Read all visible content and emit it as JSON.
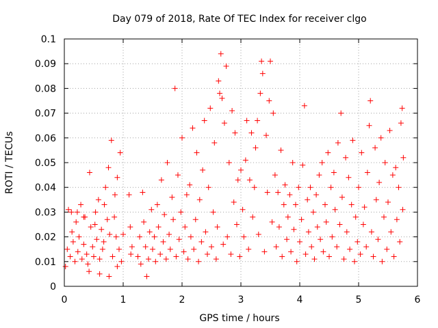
{
  "chart_data": {
    "type": "scatter",
    "title": "Day 079 of 2018, Rate Of TEC Index for receiver clgo",
    "xlabel": "GPS time / hours",
    "ylabel": "ROTI / TECUs",
    "xlim": [
      0,
      6
    ],
    "ylim": [
      0,
      0.1
    ],
    "x_ticks": [
      "0",
      "1",
      "2",
      "3",
      "4",
      "5",
      "6"
    ],
    "y_ticks": [
      "0",
      "0.01",
      "0.02",
      "0.03",
      "0.04",
      "0.05",
      "0.06",
      "0.07",
      "0.08",
      "0.09",
      "0.1"
    ],
    "grid": true,
    "marker": "+",
    "series_color": "#ff0000",
    "series": [
      {
        "name": "ROTI",
        "points": [
          [
            0.02,
            0.008
          ],
          [
            0.05,
            0.015
          ],
          [
            0.07,
            0.031
          ],
          [
            0.1,
            0.012
          ],
          [
            0.13,
            0.022
          ],
          [
            0.15,
            0.018
          ],
          [
            0.18,
            0.01
          ],
          [
            0.2,
            0.026
          ],
          [
            0.23,
            0.014
          ],
          [
            0.25,
            0.02
          ],
          [
            0.28,
            0.033
          ],
          [
            0.3,
            0.011
          ],
          [
            0.33,
            0.017
          ],
          [
            0.35,
            0.028
          ],
          [
            0.38,
            0.013
          ],
          [
            0.4,
            0.009
          ],
          [
            0.43,
            0.046
          ],
          [
            0.45,
            0.024
          ],
          [
            0.48,
            0.016
          ],
          [
            0.5,
            0.012
          ],
          [
            0.53,
            0.03
          ],
          [
            0.55,
            0.019
          ],
          [
            0.58,
            0.035
          ],
          [
            0.6,
            0.011
          ],
          [
            0.63,
            0.023
          ],
          [
            0.65,
            0.015
          ],
          [
            0.68,
            0.033
          ],
          [
            0.7,
            0.04
          ],
          [
            0.73,
            0.027
          ],
          [
            0.75,
            0.048
          ],
          [
            0.77,
            0.021
          ],
          [
            0.8,
            0.059
          ],
          [
            0.82,
            0.012
          ],
          [
            0.85,
            0.028
          ],
          [
            0.88,
            0.02
          ],
          [
            0.9,
            0.044
          ],
          [
            0.93,
            0.015
          ],
          [
            0.95,
            0.054
          ],
          [
            0.97,
            0.01
          ],
          [
            1.0,
            0.021
          ],
          [
            0.12,
            0.03
          ],
          [
            0.22,
            0.03
          ],
          [
            0.33,
            0.028
          ],
          [
            0.52,
            0.025
          ],
          [
            0.67,
            0.018
          ],
          [
            0.86,
            0.037
          ],
          [
            0.42,
            0.006
          ],
          [
            0.6,
            0.005
          ],
          [
            0.76,
            0.004
          ],
          [
            0.9,
            0.008
          ],
          [
            1.1,
            0.037
          ],
          [
            1.12,
            0.024
          ],
          [
            1.13,
            0.013
          ],
          [
            1.15,
            0.016
          ],
          [
            1.25,
            0.012
          ],
          [
            1.28,
            0.02
          ],
          [
            1.3,
            0.009
          ],
          [
            1.33,
            0.038
          ],
          [
            1.35,
            0.026
          ],
          [
            1.38,
            0.016
          ],
          [
            1.4,
            0.004
          ],
          [
            1.43,
            0.011
          ],
          [
            1.45,
            0.022
          ],
          [
            1.48,
            0.031
          ],
          [
            1.5,
            0.015
          ],
          [
            1.53,
            0.02
          ],
          [
            1.55,
            0.01
          ],
          [
            1.58,
            0.033
          ],
          [
            1.6,
            0.024
          ],
          [
            1.63,
            0.013
          ],
          [
            1.65,
            0.043
          ],
          [
            1.68,
            0.018
          ],
          [
            1.7,
            0.029
          ],
          [
            1.73,
            0.011
          ],
          [
            1.75,
            0.05
          ],
          [
            1.78,
            0.021
          ],
          [
            1.8,
            0.015
          ],
          [
            1.83,
            0.036
          ],
          [
            1.85,
            0.027
          ],
          [
            1.88,
            0.08
          ],
          [
            1.9,
            0.012
          ],
          [
            1.93,
            0.045
          ],
          [
            1.95,
            0.019
          ],
          [
            1.98,
            0.03
          ],
          [
            2.0,
            0.06
          ],
          [
            2.03,
            0.014
          ],
          [
            2.05,
            0.024
          ],
          [
            2.08,
            0.037
          ],
          [
            2.1,
            0.011
          ],
          [
            2.13,
            0.041
          ],
          [
            2.15,
            0.02
          ],
          [
            2.18,
            0.064
          ],
          [
            2.2,
            0.015
          ],
          [
            2.23,
            0.027
          ],
          [
            2.25,
            0.054
          ],
          [
            2.28,
            0.01
          ],
          [
            2.3,
            0.035
          ],
          [
            2.33,
            0.018
          ],
          [
            2.35,
            0.047
          ],
          [
            2.38,
            0.067
          ],
          [
            2.4,
            0.022
          ],
          [
            2.43,
            0.013
          ],
          [
            2.45,
            0.04
          ],
          [
            2.48,
            0.072
          ],
          [
            2.5,
            0.016
          ],
          [
            2.53,
            0.03
          ],
          [
            2.55,
            0.058
          ],
          [
            2.58,
            0.011
          ],
          [
            2.6,
            0.024
          ],
          [
            2.62,
            0.083
          ],
          [
            2.64,
            0.078
          ],
          [
            2.66,
            0.094
          ],
          [
            2.68,
            0.076
          ],
          [
            2.7,
            0.017
          ],
          [
            2.72,
            0.066
          ],
          [
            2.75,
            0.089
          ],
          [
            2.77,
            0.02
          ],
          [
            2.8,
            0.05
          ],
          [
            2.83,
            0.013
          ],
          [
            2.85,
            0.071
          ],
          [
            2.88,
            0.034
          ],
          [
            2.9,
            0.062
          ],
          [
            2.93,
            0.025
          ],
          [
            2.95,
            0.043
          ],
          [
            2.98,
            0.012
          ],
          [
            3.0,
            0.047
          ],
          [
            3.03,
            0.031
          ],
          [
            3.05,
            0.02
          ],
          [
            3.08,
            0.051
          ],
          [
            3.1,
            0.067
          ],
          [
            3.13,
            0.015
          ],
          [
            3.15,
            0.043
          ],
          [
            3.18,
            0.062
          ],
          [
            3.2,
            0.028
          ],
          [
            3.23,
            0.04
          ],
          [
            3.25,
            0.056
          ],
          [
            3.28,
            0.067
          ],
          [
            3.3,
            0.021
          ],
          [
            3.33,
            0.078
          ],
          [
            3.35,
            0.091
          ],
          [
            3.37,
            0.086
          ],
          [
            3.4,
            0.014
          ],
          [
            3.43,
            0.061
          ],
          [
            3.45,
            0.038
          ],
          [
            3.48,
            0.075
          ],
          [
            3.5,
            0.091
          ],
          [
            3.53,
            0.026
          ],
          [
            3.55,
            0.07
          ],
          [
            3.58,
            0.045
          ],
          [
            3.6,
            0.016
          ],
          [
            3.63,
            0.038
          ],
          [
            3.65,
            0.024
          ],
          [
            3.68,
            0.055
          ],
          [
            3.7,
            0.012
          ],
          [
            3.73,
            0.033
          ],
          [
            3.75,
            0.041
          ],
          [
            3.78,
            0.019
          ],
          [
            3.8,
            0.028
          ],
          [
            3.83,
            0.037
          ],
          [
            3.85,
            0.014
          ],
          [
            3.88,
            0.05
          ],
          [
            3.9,
            0.023
          ],
          [
            3.93,
            0.033
          ],
          [
            3.95,
            0.01
          ],
          [
            3.98,
            0.04
          ],
          [
            4.0,
            0.018
          ],
          [
            4.03,
            0.027
          ],
          [
            4.05,
            0.049
          ],
          [
            4.08,
            0.073
          ],
          [
            4.1,
            0.013
          ],
          [
            4.13,
            0.035
          ],
          [
            4.15,
            0.022
          ],
          [
            4.18,
            0.04
          ],
          [
            4.2,
            0.016
          ],
          [
            4.23,
            0.03
          ],
          [
            4.25,
            0.011
          ],
          [
            4.28,
            0.037
          ],
          [
            4.3,
            0.024
          ],
          [
            4.33,
            0.045
          ],
          [
            4.35,
            0.019
          ],
          [
            4.38,
            0.05
          ],
          [
            4.4,
            0.014
          ],
          [
            4.43,
            0.033
          ],
          [
            4.45,
            0.026
          ],
          [
            4.48,
            0.054
          ],
          [
            4.5,
            0.012
          ],
          [
            4.53,
            0.04
          ],
          [
            4.55,
            0.02
          ],
          [
            4.58,
            0.046
          ],
          [
            4.6,
            0.031
          ],
          [
            4.63,
            0.016
          ],
          [
            4.65,
            0.058
          ],
          [
            4.68,
            0.025
          ],
          [
            4.7,
            0.07
          ],
          [
            4.72,
            0.036
          ],
          [
            4.75,
            0.011
          ],
          [
            4.78,
            0.052
          ],
          [
            4.8,
            0.022
          ],
          [
            4.83,
            0.044
          ],
          [
            4.85,
            0.015
          ],
          [
            4.88,
            0.033
          ],
          [
            4.9,
            0.059
          ],
          [
            4.93,
            0.01
          ],
          [
            4.95,
            0.028
          ],
          [
            4.98,
            0.018
          ],
          [
            5.0,
            0.04
          ],
          [
            5.03,
            0.013
          ],
          [
            5.05,
            0.054
          ],
          [
            5.08,
            0.025
          ],
          [
            5.1,
            0.032
          ],
          [
            5.13,
            0.016
          ],
          [
            5.15,
            0.046
          ],
          [
            5.18,
            0.065
          ],
          [
            5.2,
            0.075
          ],
          [
            5.22,
            0.022
          ],
          [
            5.25,
            0.012
          ],
          [
            5.28,
            0.056
          ],
          [
            5.3,
            0.035
          ],
          [
            5.33,
            0.019
          ],
          [
            5.35,
            0.042
          ],
          [
            5.38,
            0.06
          ],
          [
            5.4,
            0.01
          ],
          [
            5.43,
            0.028
          ],
          [
            5.45,
            0.05
          ],
          [
            5.48,
            0.015
          ],
          [
            5.5,
            0.034
          ],
          [
            5.53,
            0.063
          ],
          [
            5.55,
            0.022
          ],
          [
            5.58,
            0.045
          ],
          [
            5.6,
            0.012
          ],
          [
            5.63,
            0.048
          ],
          [
            5.65,
            0.027
          ],
          [
            5.68,
            0.04
          ],
          [
            5.7,
            0.018
          ],
          [
            5.72,
            0.066
          ],
          [
            5.74,
            0.072
          ],
          [
            5.75,
            0.031
          ],
          [
            5.76,
            0.052
          ]
        ]
      }
    ]
  }
}
